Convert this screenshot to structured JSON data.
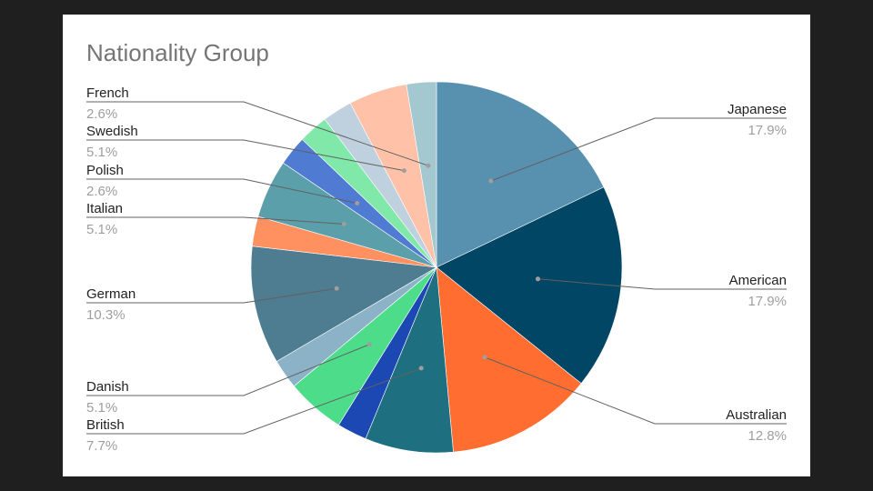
{
  "chart_data": {
    "type": "pie",
    "title": "Nationality Group",
    "slices": [
      {
        "label": "Japanese",
        "percent_label": "17.9%",
        "value": 17.9,
        "color": "#5891b0"
      },
      {
        "label": "American",
        "percent_label": "17.9%",
        "value": 17.9,
        "color": "#014664"
      },
      {
        "label": "Australian",
        "percent_label": "12.8%",
        "value": 12.8,
        "color": "#ff6e30"
      },
      {
        "label": "British",
        "percent_label": "7.7%",
        "value": 7.7,
        "color": "#1e7080"
      },
      {
        "label": "",
        "percent_label": "",
        "value": 2.6,
        "color": "#1b48b2"
      },
      {
        "label": "Danish",
        "percent_label": "5.1%",
        "value": 5.1,
        "color": "#4ddc8a"
      },
      {
        "label": "",
        "percent_label": "",
        "value": 2.6,
        "color": "#8cb2c8"
      },
      {
        "label": "German",
        "percent_label": "10.3%",
        "value": 10.3,
        "color": "#4e7c91"
      },
      {
        "label": "",
        "percent_label": "",
        "value": 2.6,
        "color": "#ff9060"
      },
      {
        "label": "Italian",
        "percent_label": "5.1%",
        "value": 5.1,
        "color": "#5b9faa"
      },
      {
        "label": "Polish",
        "percent_label": "2.6%",
        "value": 2.6,
        "color": "#4f7bd3"
      },
      {
        "label": "",
        "percent_label": "",
        "value": 2.6,
        "color": "#80e8a8"
      },
      {
        "label": "",
        "percent_label": "",
        "value": 2.6,
        "color": "#bfd1de"
      },
      {
        "label": "Swedish",
        "percent_label": "5.1%",
        "value": 5.1,
        "color": "#ffc2a8"
      },
      {
        "label": "French",
        "percent_label": "2.6%",
        "value": 2.6,
        "color": "#a4c8cf"
      }
    ],
    "legend": "none",
    "leader_line_color": "#616161"
  }
}
